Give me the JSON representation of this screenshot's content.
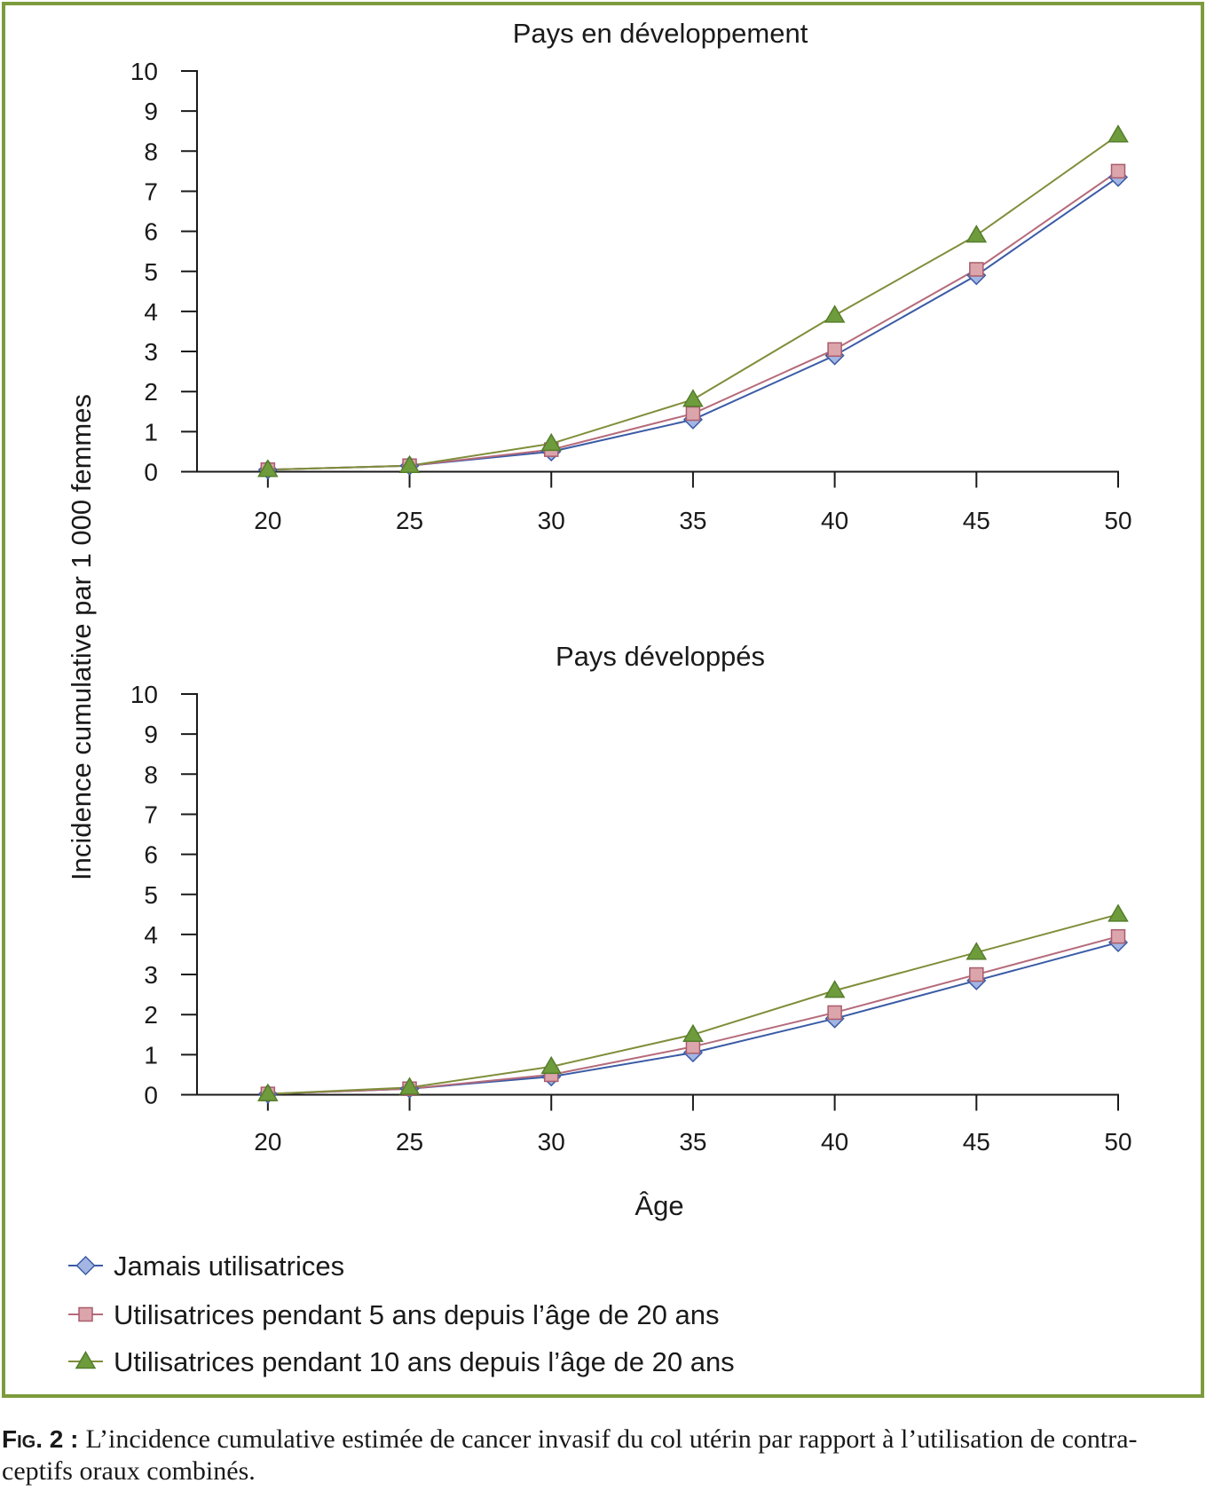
{
  "chart_data": [
    {
      "type": "line",
      "title": "Pays en développement",
      "xlabel": "",
      "ylabel": "Incidence cumulative par 1 000 femmes",
      "x": [
        20,
        25,
        30,
        35,
        40,
        45,
        50
      ],
      "xlim": [
        17.5,
        50
      ],
      "ylim": [
        0,
        10
      ],
      "y_ticks": [
        0,
        1,
        2,
        3,
        4,
        5,
        6,
        7,
        8,
        9,
        10
      ],
      "grid": false,
      "legend": "bottom-left",
      "series": [
        {
          "name": "Jamais utilisatrices",
          "values": [
            0.05,
            0.15,
            0.5,
            1.3,
            2.9,
            4.9,
            7.35
          ],
          "marker": "diamond",
          "line_color": "#3a5ba6",
          "marker_fill": "#a3b6e3",
          "marker_stroke": "#3a5ba6"
        },
        {
          "name": "Utilisatrices pendant 5 ans depuis l’âge de 20 ans",
          "values": [
            0.05,
            0.15,
            0.55,
            1.45,
            3.05,
            5.05,
            7.5
          ],
          "marker": "square",
          "line_color": "#b56b7b",
          "marker_fill": "#dba5ab",
          "marker_stroke": "#a95d6c"
        },
        {
          "name": "Utilisatrices pendant 10 ans depuis l’âge de 20 ans",
          "values": [
            0.05,
            0.15,
            0.7,
            1.8,
            3.9,
            5.9,
            8.4
          ],
          "marker": "triangle",
          "line_color": "#7f8e3a",
          "marker_fill": "#6e9c3c",
          "marker_stroke": "#557d2b"
        }
      ]
    },
    {
      "type": "line",
      "title": "Pays développés",
      "xlabel": "Âge",
      "ylabel": "Incidence cumulative par 1 000 femmes",
      "x": [
        20,
        25,
        30,
        35,
        40,
        45,
        50
      ],
      "xlim": [
        17.5,
        50
      ],
      "ylim": [
        0,
        10
      ],
      "y_ticks": [
        0,
        1,
        2,
        3,
        4,
        5,
        6,
        7,
        8,
        9,
        10
      ],
      "grid": false,
      "legend": "bottom-left",
      "series": [
        {
          "name": "Jamais utilisatrices",
          "values": [
            0.02,
            0.15,
            0.45,
            1.05,
            1.9,
            2.85,
            3.8
          ],
          "marker": "diamond",
          "line_color": "#3a5ba6",
          "marker_fill": "#a3b6e3",
          "marker_stroke": "#3a5ba6"
        },
        {
          "name": "Utilisatrices pendant 5 ans depuis l’âge de 20 ans",
          "values": [
            0.02,
            0.15,
            0.5,
            1.2,
            2.05,
            3.0,
            3.95
          ],
          "marker": "square",
          "line_color": "#b56b7b",
          "marker_fill": "#dba5ab",
          "marker_stroke": "#a95d6c"
        },
        {
          "name": "Utilisatrices pendant 10 ans depuis l’âge de 20 ans",
          "values": [
            0.02,
            0.18,
            0.7,
            1.5,
            2.6,
            3.55,
            4.5
          ],
          "marker": "triangle",
          "line_color": "#7f8e3a",
          "marker_fill": "#6e9c3c",
          "marker_stroke": "#557d2b"
        }
      ]
    }
  ],
  "colors": {
    "frame": "#7c9b3c",
    "text": "#1a1a1a"
  },
  "caption": {
    "label": "Fig. 2 :",
    "line1": "L’incidence cumulative estimée de cancer invasif du col utérin par rapport à l’utilisation de contra-",
    "line2": "ceptifs oraux combinés."
  }
}
